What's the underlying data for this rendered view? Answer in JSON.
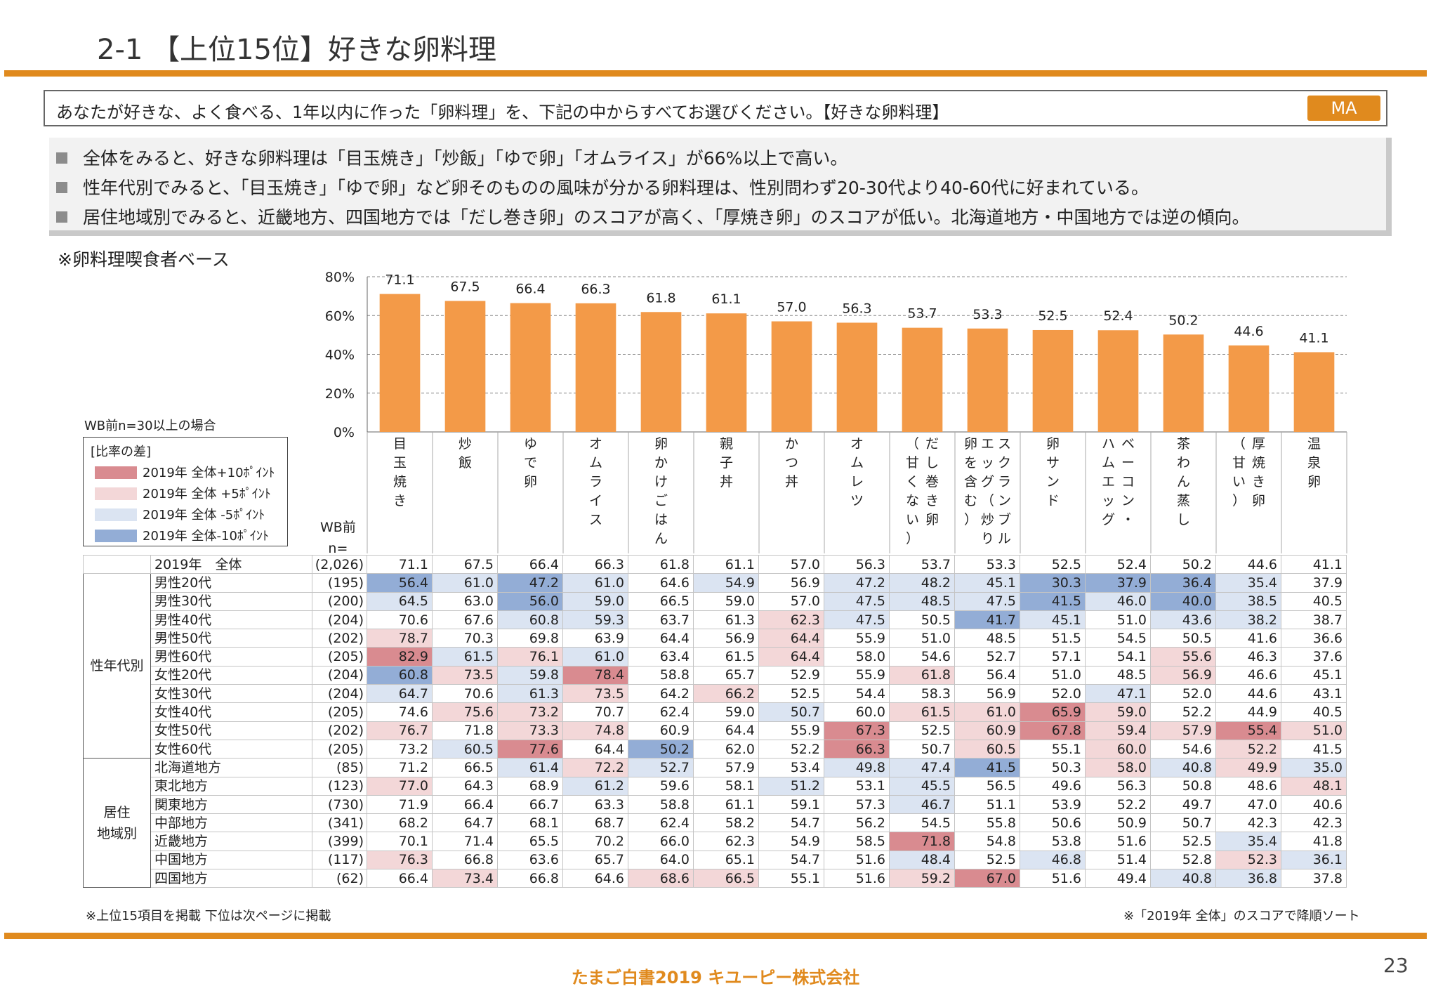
{
  "page": {
    "title": "2-1 【上位15位】好きな卵料理",
    "question": "あなたが好きな、よく食べる、1年以内に作った「卵料理」を、下記の中からすべてお選びください。【好きな卵料理】",
    "ma_badge": "MA",
    "bullets": [
      "全体をみると、好きな卵料理は「目玉焼き」「炒飯」「ゆで卵」「オムライス」が66%以上で高い。",
      "性年代別でみると、「目玉焼き」「ゆで卵」など卵そのものの風味が分かる卵料理は、性別問わず20-30代より40-60代に好まれている。",
      "居住地域別でみると、近畿地方、四国地方では「だし巻き卵」のスコアが高く、「厚焼き卵」のスコアが低い。北海道地方・中国地方では逆の傾向。"
    ],
    "base_note": "※卵料理喫食者ベース",
    "bottom_note_left": "※上位15項目を掲載 下位は次ページに掲載",
    "bottom_note_right": "※「2019年 全体」のスコアで降順ソート",
    "footer": "たまご白書2019 キユーピー株式会社",
    "page_number": "23"
  },
  "legend": {
    "condition": "WB前n=30以上の場合",
    "heading": "[比率の差]",
    "items": [
      {
        "label": "2019年 全体+10ﾎﾟｲﾝﾄ",
        "color": "#d98b90"
      },
      {
        "label": "2019年 全体 +5ﾎﾟｲﾝﾄ",
        "color": "#f3d7d8"
      },
      {
        "label": "2019年 全体 -5ﾎﾟｲﾝﾄ",
        "color": "#dbe4f2"
      },
      {
        "label": "2019年 全体-10ﾎﾟｲﾝﾄ",
        "color": "#93add6"
      }
    ]
  },
  "table": {
    "wb_label_line1": "WB前",
    "wb_label_line2": "n=",
    "groups": {
      "gender_age": "性年代別",
      "region_line1": "居住",
      "region_line2": "地域別"
    },
    "rows": [
      {
        "label": "2019年　全体",
        "n": "(2,026)",
        "values": [
          "71.1",
          "67.5",
          "66.4",
          "66.3",
          "61.8",
          "61.1",
          "57.0",
          "56.3",
          "53.7",
          "53.3",
          "52.5",
          "52.4",
          "50.2",
          "44.6",
          "41.1"
        ]
      },
      {
        "label": "男性20代",
        "n": "(195)",
        "values": [
          "56.4",
          "61.0",
          "47.2",
          "61.0",
          "64.6",
          "54.9",
          "56.9",
          "47.2",
          "48.2",
          "45.1",
          "30.3",
          "37.9",
          "36.4",
          "35.4",
          "37.9"
        ]
      },
      {
        "label": "男性30代",
        "n": "(200)",
        "values": [
          "64.5",
          "63.0",
          "56.0",
          "59.0",
          "66.5",
          "59.0",
          "57.0",
          "47.5",
          "48.5",
          "47.5",
          "41.5",
          "46.0",
          "40.0",
          "38.5",
          "40.5"
        ]
      },
      {
        "label": "男性40代",
        "n": "(204)",
        "values": [
          "70.6",
          "67.6",
          "60.8",
          "59.3",
          "63.7",
          "61.3",
          "62.3",
          "47.5",
          "50.5",
          "41.7",
          "45.1",
          "51.0",
          "43.6",
          "38.2",
          "38.7"
        ]
      },
      {
        "label": "男性50代",
        "n": "(202)",
        "values": [
          "78.7",
          "70.3",
          "69.8",
          "63.9",
          "64.4",
          "56.9",
          "64.4",
          "55.9",
          "51.0",
          "48.5",
          "51.5",
          "54.5",
          "50.5",
          "41.6",
          "36.6"
        ]
      },
      {
        "label": "男性60代",
        "n": "(205)",
        "values": [
          "82.9",
          "61.5",
          "76.1",
          "61.0",
          "63.4",
          "61.5",
          "64.4",
          "58.0",
          "54.6",
          "52.7",
          "57.1",
          "54.1",
          "55.6",
          "46.3",
          "37.6"
        ]
      },
      {
        "label": "女性20代",
        "n": "(204)",
        "values": [
          "60.8",
          "73.5",
          "59.8",
          "78.4",
          "58.8",
          "65.7",
          "52.9",
          "55.9",
          "61.8",
          "56.4",
          "51.0",
          "48.5",
          "56.9",
          "46.6",
          "45.1"
        ]
      },
      {
        "label": "女性30代",
        "n": "(204)",
        "values": [
          "64.7",
          "70.6",
          "61.3",
          "73.5",
          "64.2",
          "66.2",
          "52.5",
          "54.4",
          "58.3",
          "56.9",
          "52.0",
          "47.1",
          "52.0",
          "44.6",
          "43.1"
        ]
      },
      {
        "label": "女性40代",
        "n": "(205)",
        "values": [
          "74.6",
          "75.6",
          "73.2",
          "70.7",
          "62.4",
          "59.0",
          "50.7",
          "60.0",
          "61.5",
          "61.0",
          "65.9",
          "59.0",
          "52.2",
          "44.9",
          "40.5"
        ]
      },
      {
        "label": "女性50代",
        "n": "(202)",
        "values": [
          "76.7",
          "71.8",
          "73.3",
          "74.8",
          "60.9",
          "64.4",
          "55.9",
          "67.3",
          "52.5",
          "60.9",
          "67.8",
          "59.4",
          "57.9",
          "55.4",
          "51.0"
        ]
      },
      {
        "label": "女性60代",
        "n": "(205)",
        "values": [
          "73.2",
          "60.5",
          "77.6",
          "64.4",
          "50.2",
          "62.0",
          "52.2",
          "66.3",
          "50.7",
          "60.5",
          "55.1",
          "60.0",
          "54.6",
          "52.2",
          "41.5"
        ]
      },
      {
        "label": "北海道地方",
        "n": "(85)",
        "values": [
          "71.2",
          "66.5",
          "61.4",
          "72.2",
          "52.7",
          "57.9",
          "53.4",
          "49.8",
          "47.4",
          "41.5",
          "50.3",
          "58.0",
          "40.8",
          "49.9",
          "35.0"
        ]
      },
      {
        "label": "東北地方",
        "n": "(123)",
        "values": [
          "77.0",
          "64.3",
          "68.9",
          "61.2",
          "59.6",
          "58.1",
          "51.2",
          "53.1",
          "45.5",
          "56.5",
          "49.6",
          "56.3",
          "50.8",
          "48.6",
          "48.1"
        ]
      },
      {
        "label": "関東地方",
        "n": "(730)",
        "values": [
          "71.9",
          "66.4",
          "66.7",
          "63.3",
          "58.8",
          "61.1",
          "59.1",
          "57.3",
          "46.7",
          "51.1",
          "53.9",
          "52.2",
          "49.7",
          "47.0",
          "40.6"
        ]
      },
      {
        "label": "中部地方",
        "n": "(341)",
        "values": [
          "68.2",
          "64.7",
          "68.1",
          "68.7",
          "62.4",
          "58.2",
          "54.7",
          "56.2",
          "54.5",
          "55.8",
          "50.6",
          "50.9",
          "50.7",
          "42.3",
          "42.3"
        ]
      },
      {
        "label": "近畿地方",
        "n": "(399)",
        "values": [
          "70.1",
          "71.4",
          "65.5",
          "70.2",
          "66.0",
          "62.3",
          "54.9",
          "58.5",
          "71.8",
          "54.8",
          "53.8",
          "51.6",
          "52.5",
          "35.4",
          "41.8"
        ]
      },
      {
        "label": "中国地方",
        "n": "(117)",
        "values": [
          "76.3",
          "66.8",
          "63.6",
          "65.7",
          "64.0",
          "65.1",
          "54.7",
          "51.6",
          "48.4",
          "52.5",
          "46.8",
          "51.4",
          "52.8",
          "52.3",
          "36.1"
        ]
      },
      {
        "label": "四国地方",
        "n": "(62)",
        "values": [
          "66.4",
          "73.4",
          "66.8",
          "64.6",
          "68.6",
          "66.5",
          "55.1",
          "51.6",
          "59.2",
          "67.0",
          "51.6",
          "49.4",
          "40.8",
          "36.8",
          "37.8"
        ]
      }
    ]
  },
  "chart_data": {
    "type": "bar",
    "categories": [
      "目玉焼き",
      "炒飯",
      "ゆで卵",
      "オムライス",
      "卵かけごはん",
      "親子丼",
      "かつ丼",
      "オムレツ",
      "だし巻き卵（甘くない）",
      "スクランブルエッグ（炒り卵を含む）",
      "卵サンド",
      "ベーコン・ハムエッグ",
      "茶わん蒸し",
      "厚焼き卵（甘い）",
      "温泉卵"
    ],
    "category_lines": [
      [
        "目",
        "玉",
        "焼",
        "き"
      ],
      [
        "炒",
        "飯"
      ],
      [
        "ゆ",
        "で",
        "卵"
      ],
      [
        "オ",
        "ム",
        "ラ",
        "イ",
        "ス"
      ],
      [
        "卵",
        "か",
        "け",
        "ご",
        "は",
        "ん"
      ],
      [
        "親",
        "子",
        "丼"
      ],
      [
        "か",
        "つ",
        "丼"
      ],
      [
        "オ",
        "ム",
        "レ",
        "ツ"
      ],
      [
        "だ",
        "し",
        "巻",
        "き",
        "卵"
      ],
      [
        "ス",
        "ク",
        "ラ",
        "ン",
        "ブ",
        "ル"
      ],
      [
        "卵",
        "サ",
        "ン",
        "ド"
      ],
      [
        "ベ",
        "ー",
        "コ",
        "ン",
        "・"
      ],
      [
        "茶",
        "わ",
        "ん",
        "蒸",
        "し"
      ],
      [
        "厚",
        "焼",
        "き",
        "卵"
      ],
      [
        "温",
        "泉",
        "卵"
      ]
    ],
    "category_lines2": [
      [],
      [],
      [],
      [],
      [],
      [],
      [],
      [],
      [
        "（",
        "甘",
        "く",
        "な",
        "い",
        "）"
      ],
      [
        "エ",
        "ッ",
        "グ",
        "（",
        "炒",
        "り"
      ],
      [],
      [
        "ハ",
        "ム",
        "エ",
        "ッ",
        "グ"
      ],
      [],
      [
        "（",
        "甘",
        "い",
        "）"
      ],
      []
    ],
    "category_lines3": [
      [],
      [],
      [],
      [],
      [],
      [],
      [],
      [],
      [],
      [
        "卵",
        "を",
        "含",
        "む",
        "）"
      ],
      [],
      [],
      [],
      [],
      []
    ],
    "values": [
      71.1,
      67.5,
      66.4,
      66.3,
      61.8,
      61.1,
      57.0,
      56.3,
      53.7,
      53.3,
      52.5,
      52.4,
      50.2,
      44.6,
      41.1
    ],
    "ylim": [
      0,
      80
    ],
    "yticks": [
      "0%",
      "20%",
      "40%",
      "60%",
      "80%"
    ],
    "bar_color": "#f39a48"
  }
}
